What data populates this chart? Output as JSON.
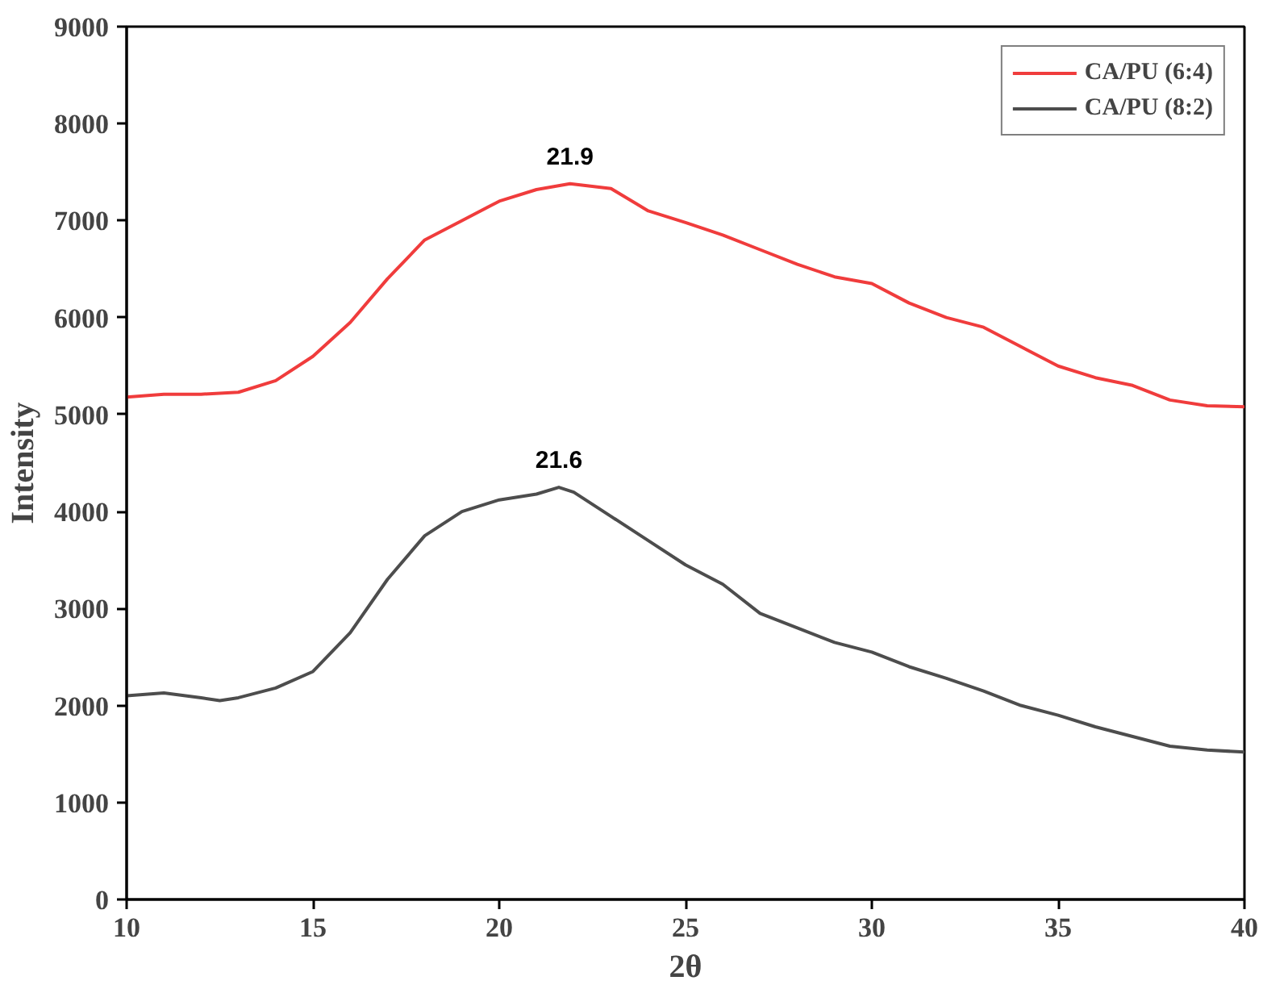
{
  "chart_data": {
    "type": "line",
    "xlabel": "2θ",
    "ylabel": "Intensity",
    "x": [
      10,
      11,
      12,
      13,
      14,
      15,
      16,
      17,
      18,
      19,
      20,
      21,
      21.9,
      23,
      24,
      25,
      26,
      27,
      28,
      29,
      30,
      31,
      32,
      33,
      34,
      35,
      36,
      37,
      38,
      39,
      40
    ],
    "series": [
      {
        "name": "CA/PU (6:4)",
        "color": "#f03c3c",
        "values": [
          5180,
          5210,
          5210,
          5230,
          5350,
          5600,
          5950,
          6400,
          6800,
          7000,
          7200,
          7320,
          7380,
          7330,
          7100,
          6980,
          6850,
          6700,
          6550,
          6420,
          6350,
          6150,
          6000,
          5900,
          5700,
          5500,
          5380,
          5300,
          5150,
          5090,
          5080
        ]
      },
      {
        "name": "CA/PU (8:2)",
        "color": "#4d4d4d",
        "x": [
          10,
          11,
          12,
          12.5,
          13,
          14,
          15,
          16,
          17,
          18,
          19,
          20,
          21,
          21.6,
          22,
          23,
          24,
          25,
          26,
          27,
          28,
          29,
          30,
          31,
          32,
          33,
          34,
          35,
          36,
          37,
          38,
          39,
          40
        ],
        "values": [
          2100,
          2130,
          2080,
          2050,
          2080,
          2180,
          2350,
          2750,
          3300,
          3750,
          4000,
          4120,
          4180,
          4250,
          4200,
          3950,
          3700,
          3450,
          3250,
          2950,
          2800,
          2650,
          2550,
          2400,
          2280,
          2150,
          2000,
          1900,
          1780,
          1680,
          1580,
          1540,
          1520
        ]
      }
    ],
    "annotations": [
      {
        "text": "21.9",
        "x": 21.9,
        "y": 7380
      },
      {
        "text": "21.6",
        "x": 21.6,
        "y": 4250
      }
    ],
    "xlim": [
      10,
      40
    ],
    "xticks": [
      10,
      15,
      20,
      25,
      30,
      35,
      40
    ],
    "ylim": [
      0,
      9000
    ],
    "yticks": [
      0,
      1000,
      2000,
      3000,
      4000,
      5000,
      6000,
      7000,
      8000,
      9000
    ],
    "grid": false,
    "legend": "top right",
    "marker": "none",
    "line_style": "solid"
  }
}
